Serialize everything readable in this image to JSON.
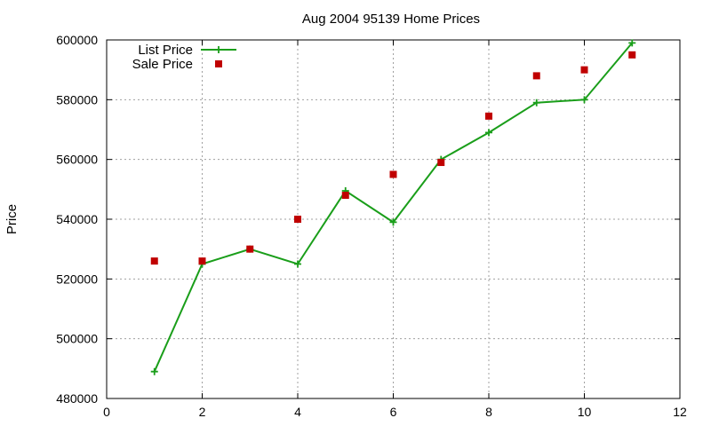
{
  "chart_data": {
    "type": "line",
    "title": "Aug 2004 95139 Home Prices",
    "xlabel": "",
    "ylabel": "Price",
    "xlim": [
      0,
      12
    ],
    "ylim": [
      480000,
      600000
    ],
    "x_ticks": [
      0,
      2,
      4,
      6,
      8,
      10,
      12
    ],
    "y_ticks": [
      480000,
      500000,
      520000,
      540000,
      560000,
      580000,
      600000
    ],
    "grid": true,
    "legend_position": "top-left",
    "series": [
      {
        "name": "List Price",
        "style": "line-plus",
        "color": "#1a9e1a",
        "x": [
          1,
          2,
          3,
          4,
          5,
          6,
          7,
          8,
          9,
          10,
          11
        ],
        "y": [
          489000,
          525000,
          530000,
          525000,
          549500,
          539000,
          560000,
          569000,
          579000,
          580000,
          599000
        ]
      },
      {
        "name": "Sale Price",
        "style": "square-points",
        "color": "#c00000",
        "x": [
          1,
          2,
          3,
          4,
          5,
          6,
          7,
          8,
          9,
          10,
          11
        ],
        "y": [
          526000,
          526000,
          530000,
          540000,
          548000,
          555000,
          559000,
          574500,
          588000,
          590000,
          595000
        ]
      }
    ]
  }
}
